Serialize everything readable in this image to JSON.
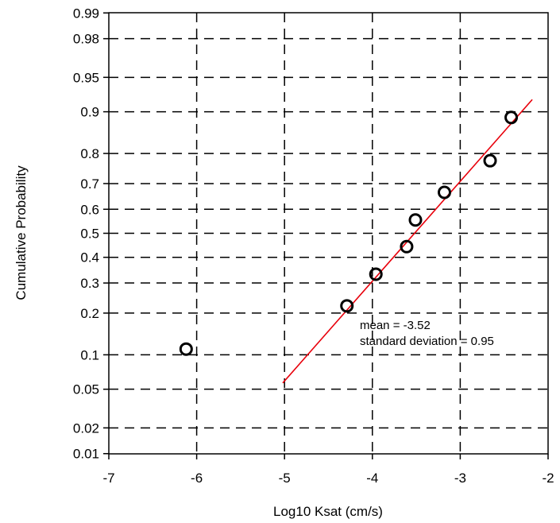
{
  "chart_data": {
    "type": "scatter",
    "xlabel": "Log10 Ksat (cm/s)",
    "ylabel": "Cumulative Probability",
    "x_ticks": [
      -7,
      -6,
      -5,
      -4,
      -3,
      -2
    ],
    "x_tick_labels": [
      "-7",
      "-6",
      "-5",
      "-4",
      "-3",
      "-2"
    ],
    "xlim": [
      -7,
      -2
    ],
    "y_scale": "probability",
    "ylim": [
      0.01,
      0.99
    ],
    "y_ticks": [
      0.01,
      0.02,
      0.05,
      0.1,
      0.2,
      0.3,
      0.4,
      0.5,
      0.6,
      0.7,
      0.8,
      0.9,
      0.95,
      0.98,
      0.99
    ],
    "y_tick_labels": [
      "0.01",
      "0.02",
      "0.05",
      "0.1",
      "0.2",
      "0.3",
      "0.4",
      "0.5",
      "0.6",
      "0.7",
      "0.8",
      "0.9",
      "0.95",
      "0.98",
      "0.99"
    ],
    "grid": true,
    "grid_style": "dashed",
    "points": [
      {
        "x": -6.12,
        "y": 0.111
      },
      {
        "x": -4.29,
        "y": 0.222
      },
      {
        "x": -3.96,
        "y": 0.333
      },
      {
        "x": -3.61,
        "y": 0.444
      },
      {
        "x": -3.51,
        "y": 0.556
      },
      {
        "x": -3.18,
        "y": 0.667
      },
      {
        "x": -2.66,
        "y": 0.778
      },
      {
        "x": -2.42,
        "y": 0.889
      }
    ],
    "fit_line": {
      "mean": -3.52,
      "sd": 0.95,
      "x_start": -5.02,
      "x_end": -2.18,
      "color": "#e8000b"
    },
    "annotations": [
      "mean = -3.52",
      "standard deviation = 0.95"
    ],
    "marker_color": "#000000"
  }
}
